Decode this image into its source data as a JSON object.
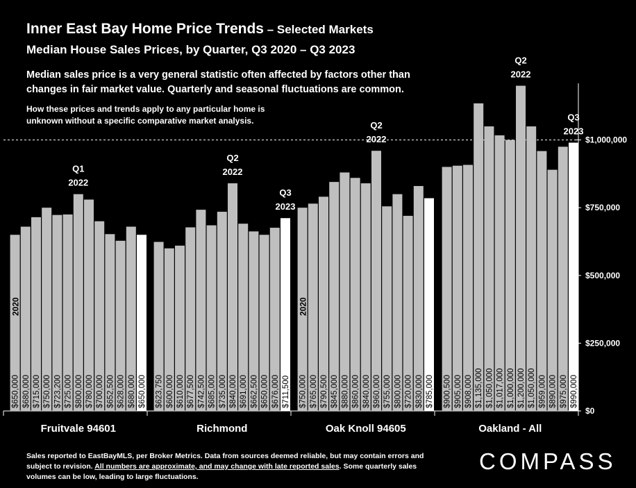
{
  "header": {
    "title_main": "Inner East Bay Home Price Trends",
    "title_suffix": " – Selected Markets",
    "subtitle": "Median House Sales Prices, by Quarter, Q3 2020 – Q3 2023",
    "note_primary": "Median sales price is a very general statistic often affected by factors other than changes in fair market value. Quarterly and seasonal fluctuations are common.",
    "note_secondary": "How these prices and trends apply to any particular home is unknown without a specific comparative market analysis."
  },
  "footer": {
    "text_before": "Sales reported to EastBayMLS, per Broker Metrics. Data from sources deemed reliable, but may contain errors and subject to revision. ",
    "text_underlined": "All numbers are approximate, and may change with late reported sales",
    "text_after": ". Some quarterly sales volumes can be low, leading to large fluctuations.",
    "logo": "COMPASS"
  },
  "colors": {
    "background": "#000000",
    "bar": "#bfbfbf",
    "bar_last": "#ffffff",
    "grid": "#ffffff",
    "text": "#ffffff"
  },
  "chart_data": {
    "type": "bar",
    "ylim": [
      0,
      1250000
    ],
    "y_ticks": [
      0,
      250000,
      500000,
      750000,
      1000000
    ],
    "y_tick_labels": [
      "$0",
      "$250,000",
      "$500,000",
      "$750,000",
      "$1,000,000"
    ],
    "grid": false,
    "groups": [
      {
        "name": "Fruitvale 94601",
        "start_label": "2020",
        "values": [
          650000,
          680000,
          715000,
          750000,
          723200,
          725000,
          800000,
          780000,
          700000,
          652500,
          628000,
          680000,
          650000
        ],
        "value_labels": [
          "$650,000",
          "$680,000",
          "$715,000",
          "$750,000",
          "$723,200",
          "$725,000",
          "$800,000",
          "$780,000",
          "$700,000",
          "$652,500",
          "$628,000",
          "$680,000",
          "$650,000"
        ],
        "annotations": [
          {
            "index": 6,
            "line1": "Q1",
            "line2": "2022"
          }
        ]
      },
      {
        "name": "Richmond",
        "start_label": "",
        "values": [
          623750,
          600000,
          610000,
          677500,
          742500,
          685000,
          735000,
          840000,
          691000,
          662500,
          650000,
          676000,
          711500
        ],
        "value_labels": [
          "$623,750",
          "$600,000",
          "$610,000",
          "$677,500",
          "$742,500",
          "$685,000",
          "$735,000",
          "$840,000",
          "$691,000",
          "$662,500",
          "$650,000",
          "$676,000",
          "$711,500"
        ],
        "annotations": [
          {
            "index": 7,
            "line1": "Q2",
            "line2": "2022"
          },
          {
            "index": 12,
            "line1": "Q3",
            "line2": "2023"
          }
        ]
      },
      {
        "name": "Oak Knoll 94605",
        "start_label": "2020",
        "values": [
          750000,
          765000,
          790500,
          845000,
          880000,
          860000,
          840000,
          960000,
          755000,
          800000,
          720000,
          830000,
          785000
        ],
        "value_labels": [
          "$750,000",
          "$765,000",
          "$790,500",
          "$845,000",
          "$880,000",
          "$860,000",
          "$840,000",
          "$960,000",
          "$755,000",
          "$800,000",
          "$720,000",
          "$830,000",
          "$785,000"
        ],
        "annotations": [
          {
            "index": 7,
            "line1": "Q2",
            "line2": "2022"
          }
        ]
      },
      {
        "name": "Oakland - All",
        "start_label": "",
        "values": [
          900500,
          905000,
          908000,
          1135000,
          1050000,
          1017000,
          1000000,
          1200000,
          1050000,
          959000,
          890000,
          975000,
          990000
        ],
        "value_labels": [
          "$900,500",
          "$905,000",
          "$908,000",
          "$1,135,000",
          "$1,050,000",
          "$1,017,000",
          "$1,000,000",
          "$1,200,000",
          "$1,050,000",
          "$959,000",
          "$890,000",
          "$975,000",
          "$990,000"
        ],
        "annotations": [
          {
            "index": 7,
            "line1": "Q2",
            "line2": "2022"
          },
          {
            "index": 12,
            "line1": "Q3",
            "line2": "2023"
          }
        ]
      }
    ]
  }
}
